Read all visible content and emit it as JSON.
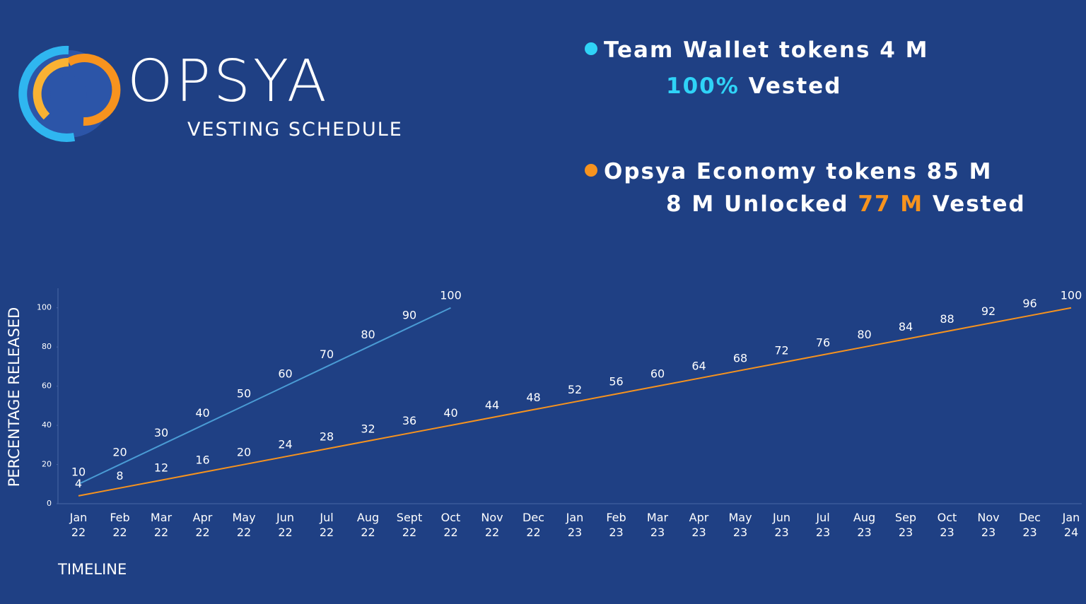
{
  "chart_data": {
    "type": "line",
    "title": "OPSYA",
    "subtitle": "VESTING SCHEDULE",
    "ylabel": "PERCENTAGE RELEASED",
    "xlabel": "TIMELINE",
    "categories": [
      "Jan 22",
      "Feb 22",
      "Mar 22",
      "Apr 22",
      "May 22",
      "Jun 22",
      "Jul 22",
      "Aug 22",
      "Sept 22",
      "Oct 22",
      "Nov 22",
      "Dec 22",
      "Jan 23",
      "Feb 23",
      "Mar 23",
      "Apr 23",
      "May 23",
      "Jun 23",
      "Jul 23",
      "Aug 23",
      "Sep 23",
      "Oct 23",
      "Nov 23",
      "Dec 23",
      "Jan 24"
    ],
    "series": [
      {
        "name": "Team Wallet tokens 4 M",
        "color": "#4a9bd4",
        "marker_color": "#2fd3f7",
        "values": [
          10,
          20,
          30,
          40,
          50,
          60,
          70,
          80,
          90,
          100,
          null,
          null,
          null,
          null,
          null,
          null,
          null,
          null,
          null,
          null,
          null,
          null,
          null,
          null,
          null
        ]
      },
      {
        "name": "Opsya Economy tokens 85 M",
        "color": "#f7931e",
        "marker_color": "#f7931e",
        "values": [
          4,
          8,
          12,
          16,
          20,
          24,
          28,
          32,
          36,
          40,
          44,
          48,
          52,
          56,
          60,
          64,
          68,
          72,
          76,
          80,
          84,
          88,
          92,
          96,
          100
        ]
      }
    ],
    "annotations": [
      {
        "parts": [
          {
            "text": "100%",
            "color": "#2fd3f7"
          },
          {
            "text": "Vested",
            "color": "#ffffff"
          }
        ]
      },
      {
        "parts": [
          {
            "text": "8 M Unlocked",
            "color": "#ffffff"
          },
          {
            "text": "77 M",
            "color": "#f7931e"
          },
          {
            "text": "Vested",
            "color": "#ffffff"
          }
        ]
      }
    ],
    "ylim": [
      0,
      110
    ],
    "yticks": [
      0,
      20,
      40,
      60,
      80,
      100
    ],
    "grid": false
  }
}
